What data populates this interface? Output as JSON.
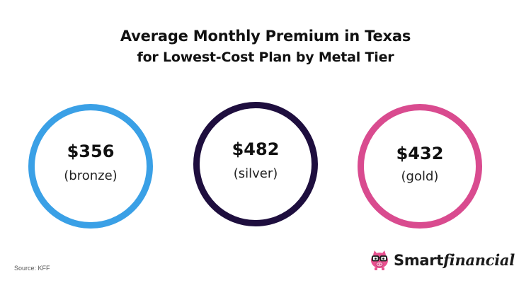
{
  "chart_data": {
    "type": "bubble-stat",
    "title": "Average Monthly Premium in Texas",
    "subtitle": "for Lowest-Cost Plan by Metal Tier",
    "categories": [
      "(bronze)",
      "(silver)",
      "(gold)"
    ],
    "values": [
      356,
      482,
      432
    ],
    "value_labels": [
      "$356",
      "$482",
      "$432"
    ],
    "colors": [
      "#3aa0e6",
      "#1e0e3e",
      "#d94b8f"
    ],
    "legend": "none",
    "grid": false
  },
  "footer": {
    "source": "Source: KFF"
  },
  "brand": {
    "smart": "Smart",
    "financial": "financial",
    "mascot_icon": "piggy-bank-glasses-icon",
    "accent": "#e8508f"
  }
}
